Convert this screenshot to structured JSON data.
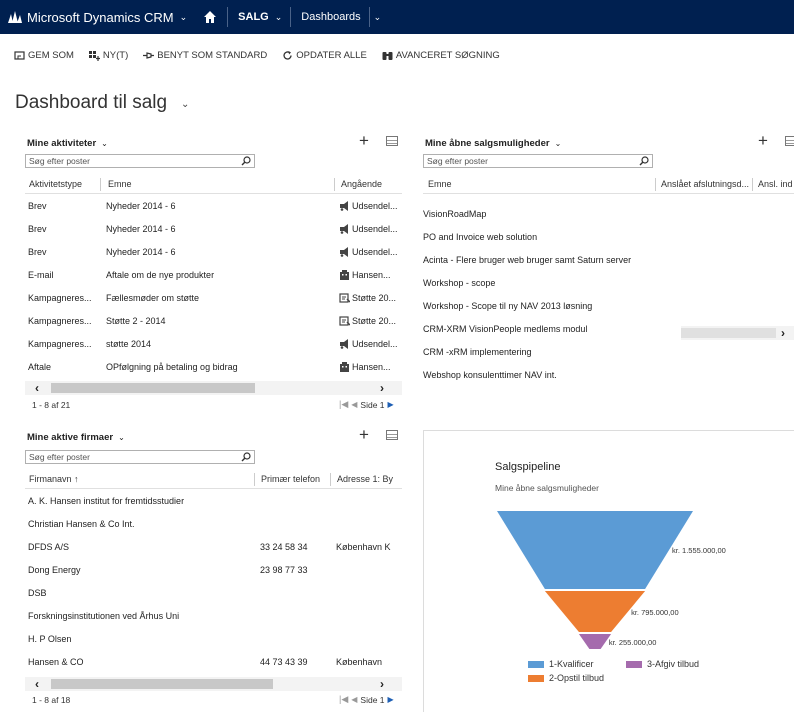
{
  "nav": {
    "brand": "Microsoft Dynamics CRM",
    "area": "SALG",
    "item": "Dashboards"
  },
  "toolbar": {
    "save_as": "GEM SOM",
    "new": "NY(T)",
    "set_default": "BENYT SOM STANDARD",
    "refresh_all": "OPDATER ALLE",
    "advanced_find": "AVANCERET SØGNING"
  },
  "page_title": "Dashboard til salg",
  "search_placeholder": "Søg efter poster",
  "activities": {
    "title": "Mine aktiviteter",
    "columns": [
      "Aktivitetstype",
      "Emne",
      "Angående"
    ],
    "rows": [
      {
        "type": "Brev",
        "subject": "Nyheder 2014 - 6",
        "regarding": "Udsendel...",
        "icon": "campaign-icon"
      },
      {
        "type": "Brev",
        "subject": "Nyheder 2014 - 6",
        "regarding": "Udsendel...",
        "icon": "campaign-icon"
      },
      {
        "type": "Brev",
        "subject": "Nyheder 2014 - 6",
        "regarding": "Udsendel...",
        "icon": "campaign-icon"
      },
      {
        "type": "E-mail",
        "subject": "Aftale om de nye produkter",
        "regarding": "Hansen...",
        "icon": "account-icon"
      },
      {
        "type": "Kampagneres...",
        "subject": "Fællesmøder om støtte",
        "regarding": "Støtte 20...",
        "icon": "case-icon"
      },
      {
        "type": "Kampagneres...",
        "subject": "Støtte 2 - 2014",
        "regarding": "Støtte 20...",
        "icon": "case-icon"
      },
      {
        "type": "Kampagneres...",
        "subject": "støtte 2014",
        "regarding": "Udsendel...",
        "icon": "campaign-icon"
      },
      {
        "type": "Aftale",
        "subject": "OPfølgning på betaling og bidrag",
        "regarding": "Hansen...",
        "icon": "account-icon"
      }
    ],
    "pager_left": "1 - 8  af 21",
    "page_label": "Side 1"
  },
  "opportunities": {
    "title": "Mine åbne salgsmuligheder",
    "columns": [
      "Emne",
      "Anslået afslutningsd...",
      "Ansl. ind"
    ],
    "rows": [
      "VisionRoadMap",
      "PO and Invoice web solution",
      "Acinta - Flere bruger web bruger samt Saturn server",
      "Workshop - scope",
      "Workshop - Scope til ny NAV 2013 løsning",
      "CRM-XRM VisionPeople medlems modul",
      "CRM -xRM implementering",
      "Webshop konsulenttimer NAV int."
    ]
  },
  "accounts": {
    "title": "Mine aktive firmaer",
    "columns": [
      "Firmanavn",
      "Primær telefon",
      "Adresse 1: By"
    ],
    "rows": [
      {
        "name": "A. K. Hansen institut for fremtidsstudier",
        "phone": "",
        "city": ""
      },
      {
        "name": "Christian Hansen & Co Int.",
        "phone": "",
        "city": ""
      },
      {
        "name": "DFDS A/S",
        "phone": "33 24 58 34",
        "city": "København K"
      },
      {
        "name": "Dong Energy",
        "phone": "23 98 77 33",
        "city": ""
      },
      {
        "name": "DSB",
        "phone": "",
        "city": ""
      },
      {
        "name": "Forskningsinstitutionen ved Århus Uni",
        "phone": "",
        "city": ""
      },
      {
        "name": "H. P Olsen",
        "phone": "",
        "city": ""
      },
      {
        "name": "Hansen & CO",
        "phone": "44 73 43 39",
        "city": "København"
      }
    ],
    "pager_left": "1 - 8  af 18",
    "page_label": "Side 1"
  },
  "pipeline": {
    "title": "Salgspipeline",
    "subtitle": "Mine åbne salgsmuligheder"
  },
  "chart_data": {
    "type": "funnel",
    "title": "Salgspipeline",
    "subtitle": "Mine åbne salgsmuligheder",
    "categories": [
      "1-Kvalificer",
      "2-Opstil tilbud",
      "3-Afgiv tilbud"
    ],
    "values": [
      1555000,
      795000,
      255000
    ],
    "labels": [
      "kr. 1.555.000,00",
      "kr. 795.000,00",
      "kr. 255.000,00"
    ],
    "colors": [
      "#5b9bd5",
      "#ed7d31",
      "#a56bad"
    ],
    "legend": "bottom"
  }
}
